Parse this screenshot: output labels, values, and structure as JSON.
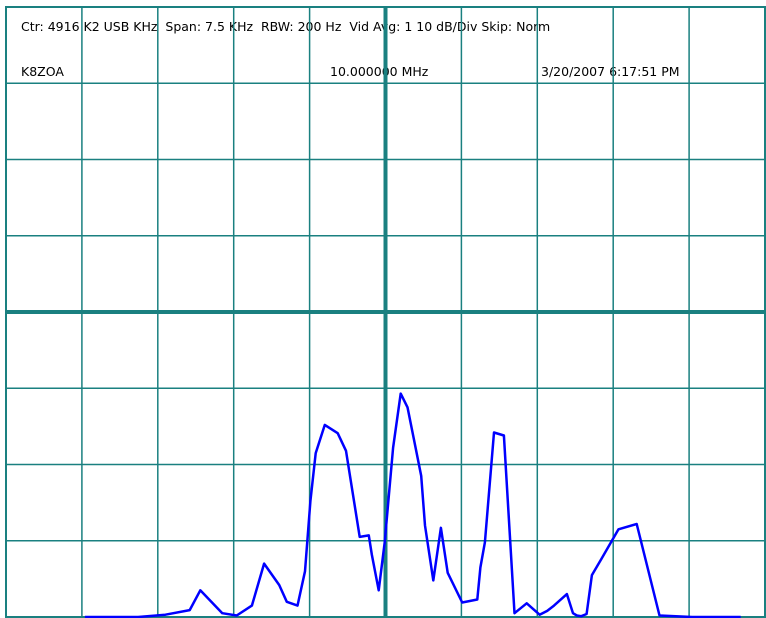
{
  "header": {
    "settings_line": "Ctr: 4916 K2 USB KHz  Span: 7.5 KHz  RBW: 200 Hz  Vid Avg: 1 10 dB/Div Skip: Norm",
    "callsign": "K8ZOA",
    "frequency": "10.000000 MHz",
    "datetime": "3/20/2007 6:17:51 PM"
  },
  "colors": {
    "background": "#ffffff",
    "grid": "#1a8080",
    "trace": "#0000ff",
    "text": "#000000"
  },
  "chart_data": {
    "type": "line",
    "title": "",
    "xlabel": "",
    "ylabel": "",
    "grid": true,
    "divisions_x": 10,
    "divisions_y": 8,
    "xlim": [
      0,
      10
    ],
    "ylim": [
      0,
      8
    ],
    "series": [
      {
        "x": [
          1.04,
          1.34,
          1.52,
          1.74,
          2.1,
          2.42,
          2.56,
          2.85,
          3.04,
          3.24,
          3.4,
          3.6,
          3.7,
          3.84,
          3.94,
          4.01,
          4.08,
          4.2,
          4.37,
          4.48,
          4.66,
          4.78,
          4.82,
          4.91,
          4.99,
          5.1,
          5.2,
          5.29,
          5.37,
          5.47,
          5.52,
          5.63,
          5.73,
          5.82,
          6.01,
          6.21,
          6.25,
          6.31,
          6.43,
          6.56,
          6.7,
          6.86,
          7.03,
          7.13,
          7.22,
          7.39,
          7.47,
          7.52,
          7.58,
          7.65,
          7.72,
          7.85,
          8.07,
          8.31,
          8.61,
          9.04,
          9.5,
          9.68
        ],
        "y": [
          0.0,
          0.0,
          0.0,
          0.0,
          0.03,
          0.09,
          0.35,
          0.05,
          0.02,
          0.15,
          0.7,
          0.42,
          0.2,
          0.15,
          0.6,
          1.52,
          2.15,
          2.52,
          2.41,
          2.18,
          1.05,
          1.07,
          0.82,
          0.35,
          0.98,
          2.22,
          2.93,
          2.75,
          2.35,
          1.85,
          1.2,
          0.48,
          1.17,
          0.58,
          0.19,
          0.23,
          0.65,
          0.98,
          2.42,
          2.38,
          0.05,
          0.18,
          0.03,
          0.08,
          0.15,
          0.3,
          0.05,
          0.02,
          0.01,
          0.04,
          0.55,
          0.77,
          1.15,
          1.22,
          0.02,
          0.0,
          0.0,
          0.0
        ],
        "type_hint": "spectrum trace"
      }
    ]
  }
}
